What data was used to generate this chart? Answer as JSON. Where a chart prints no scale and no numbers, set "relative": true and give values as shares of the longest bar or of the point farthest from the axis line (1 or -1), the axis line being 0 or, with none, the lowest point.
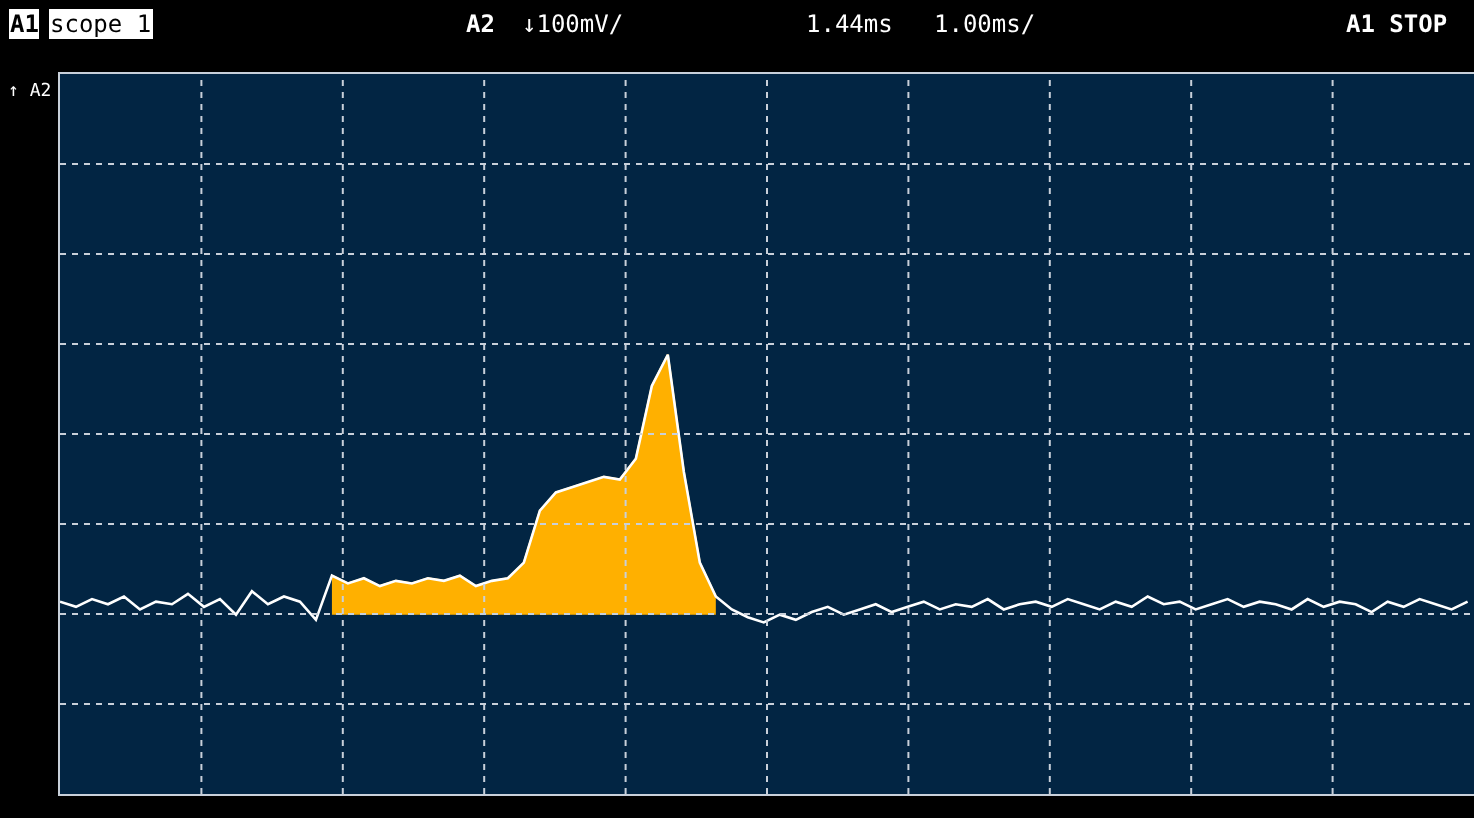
{
  "chart_data": {
    "type": "line",
    "relative": true,
    "tick_labels": false,
    "grid": true,
    "line_style": "solid",
    "categories": [
      null,
      null,
      null,
      null,
      null,
      null,
      null,
      null,
      null,
      null,
      null,
      null,
      null,
      null,
      null,
      null,
      null,
      null,
      null,
      null,
      null,
      null,
      null,
      null,
      null,
      null,
      null,
      null,
      null,
      null,
      null,
      null,
      null,
      null,
      null,
      null,
      null,
      null,
      null,
      null,
      null,
      null,
      null,
      null,
      null,
      null,
      null,
      null,
      null,
      null,
      null,
      null,
      null,
      null,
      null,
      null,
      null,
      null,
      null,
      null,
      null,
      null,
      null,
      null,
      null,
      null,
      null,
      null,
      null,
      null,
      null,
      null,
      null,
      null,
      null,
      null,
      null,
      null,
      null,
      null,
      null,
      null,
      null,
      null,
      null,
      null,
      null,
      null,
      null
    ],
    "series": [
      {
        "type": "area",
        "color": "#ffb000",
        "values": [
          null,
          null,
          null,
          null,
          null,
          null,
          null,
          null,
          null,
          null,
          null,
          null,
          null,
          null,
          null,
          null,
          null,
          0.15,
          0.12,
          0.14,
          0.11,
          0.13,
          0.12,
          0.14,
          0.13,
          0.15,
          0.11,
          0.13,
          0.14,
          0.2,
          0.4,
          0.47,
          0.49,
          0.51,
          0.53,
          0.52,
          0.6,
          0.88,
          1.0,
          0.55,
          0.2,
          0.07,
          null,
          null,
          null,
          null,
          null,
          null,
          null,
          null,
          null,
          null,
          null,
          null,
          null,
          null,
          null,
          null,
          null,
          null,
          null,
          null,
          null,
          null,
          null,
          null,
          null,
          null,
          null,
          null,
          null,
          null,
          null,
          null,
          null,
          null,
          null,
          null,
          null,
          null,
          null,
          null,
          null,
          null,
          null,
          null,
          null,
          null,
          null
        ]
      },
      {
        "color": "#ffffff",
        "values": [
          0.05,
          0.03,
          0.06,
          0.04,
          0.07,
          0.02,
          0.05,
          0.04,
          0.08,
          0.03,
          0.06,
          0.0,
          0.09,
          0.04,
          0.07,
          0.05,
          -0.02,
          0.15,
          0.12,
          0.14,
          0.11,
          0.13,
          0.12,
          0.14,
          0.13,
          0.15,
          0.11,
          0.13,
          0.14,
          0.2,
          0.4,
          0.47,
          0.49,
          0.51,
          0.53,
          0.52,
          0.6,
          0.88,
          1.0,
          0.55,
          0.2,
          0.07,
          0.02,
          -0.01,
          -0.03,
          0.0,
          -0.02,
          0.01,
          0.03,
          0.0,
          0.02,
          0.04,
          0.01,
          0.03,
          0.05,
          0.02,
          0.04,
          0.03,
          0.06,
          0.02,
          0.04,
          0.05,
          0.03,
          0.06,
          0.04,
          0.02,
          0.05,
          0.03,
          0.07,
          0.04,
          0.05,
          0.02,
          0.04,
          0.06,
          0.03,
          0.05,
          0.04,
          0.02,
          0.06,
          0.03,
          0.05,
          0.04,
          0.01,
          0.05,
          0.03,
          0.06,
          0.04,
          0.02,
          0.05
        ]
      }
    ],
    "annotations": [
      "A1",
      "scope 1",
      "A2",
      "↓100mV/",
      "1.44ms",
      "1.00ms/",
      "A1 STOP",
      "↑ A2"
    ]
  }
}
